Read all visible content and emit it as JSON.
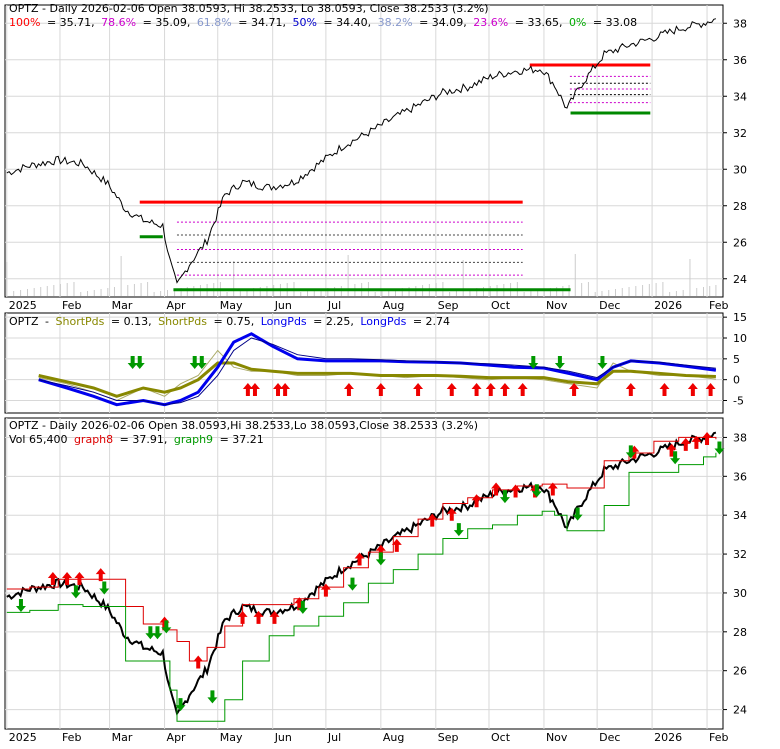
{
  "colors": {
    "background": "#ffffff",
    "grid": "#d8d8d8",
    "axis": "#000000",
    "price": "#000000",
    "fib_resistance": "#ff0000",
    "fib_support": "#008800",
    "fib_dotted": "#cc00cc",
    "short_period": "#888800",
    "long_period": "#0000ee",
    "arrow_up": "#009900",
    "arrow_down": "#ee0000",
    "graph8": "#dd0000",
    "graph9": "#009900",
    "volume": "#cccccc"
  },
  "panel1": {
    "title": "OPTZ - Daily 2026-02-06 Open 38.0593, Hi 38.2533, Lo 38.0593, Close 38.2533 (3.2%)",
    "fib_levels": [
      {
        "label": "100%",
        "value": "= 35.71,",
        "color": "#ff0000"
      },
      {
        "label": "78.6%",
        "value": "= 35.09,",
        "color": "#cc00cc"
      },
      {
        "label": "61.8%",
        "value": "= 34.71,",
        "color": "#8899cc"
      },
      {
        "label": "50%",
        "value": "= 34.40,",
        "color": "#0000cc"
      },
      {
        "label": "38.2%",
        "value": "= 34.09,",
        "color": "#8899cc"
      },
      {
        "label": "23.6%",
        "value": "= 33.65,",
        "color": "#cc00cc"
      },
      {
        "label": "0%",
        "value": "= 33.08",
        "color": "#00aa00"
      }
    ],
    "y_ticks": [
      "38",
      "36",
      "34",
      "32",
      "30",
      "28",
      "26",
      "24"
    ],
    "x_ticks": [
      "2025",
      "Feb",
      "Mar",
      "Apr",
      "May",
      "Jun",
      "Jul",
      "Aug",
      "Sep",
      "Oct",
      "Nov",
      "Dec",
      "2026",
      "Feb"
    ]
  },
  "panel2": {
    "ticker": "OPTZ",
    "short1": {
      "label": "ShortPds",
      "value": "= 0.13,"
    },
    "short2": {
      "label": "ShortPds",
      "value": "= 0.75,"
    },
    "long1": {
      "label": "LongPds",
      "value": "= 2.25,"
    },
    "long2": {
      "label": "LongPds",
      "value": "= 2.74"
    },
    "y_ticks": [
      "15",
      "10",
      "5",
      "0",
      "-5"
    ]
  },
  "panel3": {
    "title": "OPTZ - Daily 2026-02-06 Open 38.0593,Hi 38.2533,Lo 38.0593,Close 38.2533 (3.2%)",
    "volume_text": "Vol 65,400",
    "graph8": {
      "label": "graph8",
      "value": "= 37.91,"
    },
    "graph9": {
      "label": "graph9",
      "value": "= 37.21"
    },
    "y_ticks": [
      "38",
      "36",
      "34",
      "32",
      "30",
      "28",
      "26",
      "24"
    ],
    "x_ticks": [
      "2025",
      "Feb",
      "Mar",
      "Apr",
      "May",
      "Jun",
      "Jul",
      "Aug",
      "Sep",
      "Oct",
      "Nov",
      "Dec",
      "2026",
      "Feb"
    ]
  },
  "chart_data": [
    {
      "type": "line",
      "subtype": "daily price with Fibonacci retracement levels",
      "x": [
        "2025-01-02",
        "2025-01-15",
        "2025-01-31",
        "2025-02-14",
        "2025-02-28",
        "2025-03-10",
        "2025-03-20",
        "2025-03-31",
        "2025-04-04",
        "2025-04-08",
        "2025-04-15",
        "2025-04-25",
        "2025-05-05",
        "2025-05-15",
        "2025-05-30",
        "2025-06-13",
        "2025-06-27",
        "2025-07-11",
        "2025-07-25",
        "2025-08-08",
        "2025-08-22",
        "2025-09-05",
        "2025-09-19",
        "2025-10-03",
        "2025-10-17",
        "2025-10-31",
        "2025-11-07",
        "2025-11-14",
        "2025-11-21",
        "2025-12-05",
        "2025-12-19",
        "2026-01-02",
        "2026-01-16",
        "2026-01-30",
        "2026-02-06"
      ],
      "y": [
        29.8,
        30.2,
        30.5,
        30.3,
        29.2,
        27.8,
        27.2,
        26.9,
        25.0,
        23.6,
        24.8,
        26.1,
        28.6,
        29.3,
        29.0,
        29.3,
        30.3,
        31.3,
        32.0,
        32.8,
        33.5,
        34.2,
        34.5,
        35.1,
        35.4,
        35.5,
        34.6,
        33.3,
        34.5,
        36.3,
        36.8,
        37.2,
        37.7,
        38.0,
        38.25
      ],
      "ylim": [
        23,
        39
      ],
      "x_ticks": [
        "2025",
        "Feb",
        "Mar",
        "Apr",
        "May",
        "Jun",
        "Jul",
        "Aug",
        "Sep",
        "Oct",
        "Nov",
        "Dec",
        "2026",
        "Feb"
      ],
      "fibonacci": {
        "anchor_high": 35.71,
        "anchor_low": 33.08,
        "levels": [
          {
            "pct": "100%",
            "value": 35.71
          },
          {
            "pct": "78.6%",
            "value": 35.09
          },
          {
            "pct": "61.8%",
            "value": 34.71
          },
          {
            "pct": "50%",
            "value": 34.4
          },
          {
            "pct": "38.2%",
            "value": 34.09
          },
          {
            "pct": "23.6%",
            "value": 33.65
          },
          {
            "pct": "0%",
            "value": 33.08
          }
        ],
        "prior_high": 28.2,
        "prior_low": 23.4
      }
    },
    {
      "type": "line",
      "subtype": "period oscillator",
      "x": [
        "2025-01-20",
        "2025-02-05",
        "2025-02-20",
        "2025-03-05",
        "2025-03-20",
        "2025-04-01",
        "2025-04-10",
        "2025-04-20",
        "2025-05-01",
        "2025-05-10",
        "2025-05-20",
        "2025-06-01",
        "2025-06-15",
        "2025-07-01",
        "2025-07-15",
        "2025-08-01",
        "2025-08-15",
        "2025-09-01",
        "2025-09-15",
        "2025-10-01",
        "2025-10-15",
        "2025-11-01",
        "2025-11-15",
        "2025-12-01",
        "2025-12-10",
        "2025-12-20",
        "2026-01-05",
        "2026-01-20",
        "2026-02-06"
      ],
      "series": [
        {
          "name": "ShortPds",
          "values": [
            0.5,
            -1,
            -3,
            -5,
            -2,
            -4,
            -1,
            1,
            7,
            3,
            2,
            2,
            1,
            1,
            1.5,
            1,
            0.5,
            1,
            0.5,
            0,
            0.5,
            0,
            -1,
            -2,
            4,
            2,
            1,
            1,
            0.13
          ]
        },
        {
          "name": "ShortPds",
          "values": [
            1,
            -0.5,
            -2,
            -4,
            -2,
            -3,
            -2,
            0,
            4,
            4,
            2.5,
            2,
            1.5,
            1.5,
            1.5,
            1,
            1,
            1,
            0.8,
            0.5,
            0.5,
            0.5,
            -0.5,
            -1,
            2,
            2,
            1.5,
            1,
            0.75
          ]
        },
        {
          "name": "LongPds",
          "values": [
            0,
            -2,
            -4,
            -6,
            -5,
            -6,
            -5,
            -3,
            3,
            9,
            11,
            8,
            5,
            4.5,
            4.5,
            4.5,
            4.3,
            4.2,
            4,
            3.5,
            3,
            2.8,
            1.5,
            0,
            3,
            4.5,
            4,
            3.2,
            2.25
          ]
        },
        {
          "name": "LongPds",
          "values": [
            0,
            -1.5,
            -3,
            -5,
            -5,
            -6,
            -5.5,
            -4,
            1,
            7,
            10,
            8.5,
            6,
            5,
            5,
            4.8,
            4.5,
            4.3,
            4,
            3.8,
            3.5,
            3,
            2,
            0.5,
            3,
            4.5,
            4.2,
            3.5,
            2.74
          ]
        }
      ],
      "ylim": [
        -8,
        16
      ],
      "y_ticks": [
        15,
        10,
        5,
        0,
        -5
      ]
    },
    {
      "type": "line",
      "subtype": "price with trailing stops and signals",
      "x": [
        "2025-01-02",
        "2025-01-15",
        "2025-01-31",
        "2025-02-14",
        "2025-02-28",
        "2025-03-10",
        "2025-03-20",
        "2025-03-31",
        "2025-04-04",
        "2025-04-08",
        "2025-04-15",
        "2025-04-25",
        "2025-05-05",
        "2025-05-15",
        "2025-05-30",
        "2025-06-13",
        "2025-06-27",
        "2025-07-11",
        "2025-07-25",
        "2025-08-08",
        "2025-08-22",
        "2025-09-05",
        "2025-09-19",
        "2025-10-03",
        "2025-10-17",
        "2025-10-31",
        "2025-11-07",
        "2025-11-14",
        "2025-11-21",
        "2025-12-05",
        "2025-12-19",
        "2026-01-02",
        "2026-01-16",
        "2026-01-30",
        "2026-02-06"
      ],
      "series": [
        {
          "name": "Close",
          "values": [
            29.8,
            30.2,
            30.5,
            30.3,
            29.2,
            27.8,
            27.2,
            26.9,
            25.0,
            23.6,
            24.8,
            26.1,
            28.6,
            29.3,
            29.0,
            29.3,
            30.3,
            31.3,
            32.0,
            32.8,
            33.5,
            34.2,
            34.5,
            35.1,
            35.4,
            35.5,
            34.6,
            33.3,
            34.5,
            36.3,
            36.8,
            37.2,
            37.7,
            38.0,
            38.25
          ]
        },
        {
          "name": "graph8",
          "values": [
            30.2,
            30.3,
            30.7,
            30.7,
            30.7,
            29.3,
            28.4,
            28.1,
            28.1,
            27.5,
            26.5,
            27.2,
            28.3,
            29.4,
            29.4,
            29.7,
            30.3,
            31.3,
            32.1,
            32.9,
            33.8,
            34.6,
            34.9,
            35.3,
            35.5,
            35.6,
            35.6,
            35.4,
            35.4,
            36.8,
            37.2,
            37.8,
            38.0,
            38.0,
            37.91
          ]
        },
        {
          "name": "graph9",
          "values": [
            29.0,
            29.1,
            29.4,
            29.3,
            29.3,
            26.5,
            26.5,
            26.5,
            25.0,
            23.4,
            23.4,
            23.4,
            24.5,
            26.5,
            27.8,
            28.3,
            28.8,
            29.5,
            30.5,
            31.2,
            32.0,
            32.8,
            33.3,
            33.5,
            34.0,
            34.2,
            34.0,
            33.2,
            33.2,
            34.5,
            36.2,
            36.2,
            36.6,
            37.0,
            37.21
          ]
        }
      ],
      "volume_label": "65,400",
      "ylim": [
        23,
        39
      ],
      "y_ticks": [
        38,
        36,
        34,
        32,
        30,
        28,
        26,
        24
      ]
    }
  ]
}
